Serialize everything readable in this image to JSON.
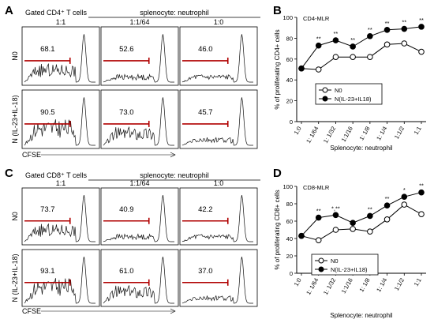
{
  "panels": {
    "A": {
      "letter": "A",
      "header": "Gated CD4⁺ T cells",
      "ratio_title": "splenocyte: neutrophil",
      "columns": [
        "1:1",
        "1:1/64",
        "1:0"
      ],
      "rows": [
        "N0",
        "N (IL-23+IL-18)"
      ],
      "values": [
        [
          "68.1",
          "52.6",
          "46.0"
        ],
        [
          "90.5",
          "73.0",
          "45.7"
        ]
      ],
      "xlabel": "CFSE"
    },
    "C": {
      "letter": "C",
      "header": "Gated CD8⁺ T cells",
      "ratio_title": "splenocyte: neutrophil",
      "columns": [
        "1:1",
        "1:1/64",
        "1:0"
      ],
      "rows": [
        "N0",
        "N (IL-23+IL-18)"
      ],
      "values": [
        [
          "73.7",
          "40.9",
          "42.2"
        ],
        [
          "93.1",
          "61.0",
          "37.0"
        ]
      ],
      "xlabel": "CFSE"
    }
  },
  "chart_data": [
    {
      "letter": "B",
      "type": "line",
      "title": "CD4-MLR",
      "ylabel": "% of proliferating CD4+ cells",
      "xlabel": "Splenocyte: neutrophil",
      "categories": [
        "1:0",
        "1:  1/64",
        "1:  1/32",
        "1:1/16",
        "1:  1/8",
        "1:  1/4",
        "1:1/2",
        "1:1"
      ],
      "ylim": [
        0,
        100
      ],
      "yticks": [
        "0",
        "20",
        "40",
        "60",
        "80",
        "100"
      ],
      "series": [
        {
          "name": "N0",
          "marker": "open",
          "values": [
            51,
            50,
            62,
            62,
            62,
            74,
            75,
            67
          ]
        },
        {
          "name": "N(IL-23+IL18)",
          "marker": "filled",
          "values": [
            51,
            73,
            78,
            72,
            82,
            88,
            89,
            91
          ]
        }
      ],
      "annotations": [
        "",
        "**",
        "**",
        "**",
        "**",
        "**",
        "**",
        "**"
      ],
      "legend_position": "lower-center",
      "grid": false
    },
    {
      "letter": "D",
      "type": "line",
      "title": "CD8-MLR",
      "ylabel": "% of proliferating CD8+ cells",
      "xlabel": "Splenocyte: neutrophil",
      "categories": [
        "1:0",
        "1:  1/64",
        "1:  1/32",
        "1:1/16",
        "1:  1/8",
        "1:  1/4",
        "1:1/2",
        "1:1"
      ],
      "ylim": [
        0,
        100
      ],
      "yticks": [
        "0",
        "20",
        "40",
        "60",
        "80",
        "100"
      ],
      "series": [
        {
          "name": "N0",
          "marker": "open",
          "values": [
            43,
            38,
            50,
            51,
            48,
            62,
            79,
            68
          ]
        },
        {
          "name": "N(IL-23+IL18)",
          "marker": "filled",
          "values": [
            43,
            64,
            67,
            58,
            66,
            78,
            88,
            93
          ]
        }
      ],
      "annotations": [
        "",
        "**",
        "*,**",
        "",
        "**",
        "**",
        "*",
        "**"
      ],
      "legend_position": "lower-center",
      "grid": false
    }
  ]
}
